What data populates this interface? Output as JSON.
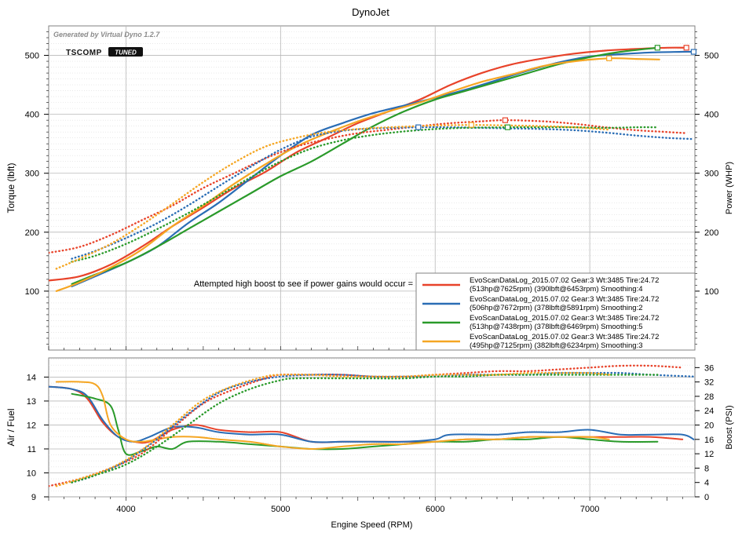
{
  "title": "DynoJet",
  "watermark": "Generated by Virtual Dyno 1.2.7",
  "logo": {
    "left": "TSCOMP",
    "right": "TUNED"
  },
  "annotation": "Attempted high boost to see if power gains would occur =",
  "colors": {
    "red": "#e8432a",
    "blue": "#2a6db5",
    "green": "#2a9a2a",
    "orange": "#f5a623",
    "grid": "#b8b8b8",
    "frame": "#808080"
  },
  "legend": [
    {
      "color": "#e8432a",
      "line1": "EvoScanDataLog_2015.07.02 Gear:3 Wt:3485 Tire:24.72",
      "line2": "(513hp@7625rpm) (390lbft@6453rpm) Smoothing:4"
    },
    {
      "color": "#2a6db5",
      "line1": "EvoScanDataLog_2015.07.02 Gear:3 Wt:3485 Tire:24.72",
      "line2": "(506hp@7672rpm) (378lbft@5891rpm) Smoothing:2"
    },
    {
      "color": "#2a9a2a",
      "line1": "EvoScanDataLog_2015.07.02 Gear:3 Wt:3485 Tire:24.72",
      "line2": "(513hp@7438rpm) (378lbft@6469rpm) Smoothing:5"
    },
    {
      "color": "#f5a623",
      "line1": "EvoScanDataLog_2015.07.02 Gear:3 Wt:3485 Tire:24.72",
      "line2": "(495hp@7125rpm) (382lbft@6234rpm) Smoothing:3"
    }
  ],
  "chart_data": [
    {
      "type": "line",
      "xlabel": "",
      "ylabel": "Torque (lbft)",
      "y2label": "Power (WHP)",
      "xlim": [
        3500,
        7680
      ],
      "ylim": [
        0,
        550
      ],
      "y2lim": [
        0,
        550
      ],
      "xticks": [
        4000,
        5000,
        6000,
        7000
      ],
      "yticks": [
        100,
        200,
        300,
        400,
        500
      ],
      "y2ticks": [
        100,
        200,
        300,
        400,
        500
      ],
      "grid": true,
      "legend_position": "bottom-right",
      "series": [
        {
          "color": "#e8432a",
          "style": "solid",
          "axis": "power",
          "x": [
            3500,
            3700,
            3900,
            4100,
            4300,
            4500,
            4700,
            4900,
            5100,
            5300,
            5500,
            5700,
            5900,
            6100,
            6300,
            6500,
            6700,
            6900,
            7100,
            7300,
            7500,
            7625
          ],
          "y": [
            118,
            125,
            145,
            175,
            210,
            242,
            275,
            302,
            335,
            360,
            385,
            405,
            425,
            450,
            470,
            485,
            495,
            503,
            508,
            511,
            513,
            513
          ]
        },
        {
          "color": "#2a6db5",
          "style": "solid",
          "axis": "power",
          "x": [
            3650,
            3800,
            4000,
            4200,
            4400,
            4600,
            4800,
            5000,
            5200,
            5400,
            5600,
            5800,
            6000,
            6200,
            6400,
            6600,
            6800,
            7000,
            7200,
            7400,
            7600,
            7672
          ],
          "y": [
            108,
            125,
            148,
            175,
            215,
            250,
            290,
            330,
            365,
            385,
            402,
            415,
            428,
            442,
            458,
            474,
            488,
            498,
            502,
            505,
            506,
            506
          ]
        },
        {
          "color": "#2a9a2a",
          "style": "solid",
          "axis": "power",
          "x": [
            3650,
            3800,
            4000,
            4200,
            4400,
            4600,
            4800,
            5000,
            5200,
            5400,
            5600,
            5800,
            6000,
            6200,
            6400,
            6600,
            6800,
            7000,
            7200,
            7438
          ],
          "y": [
            112,
            128,
            148,
            175,
            205,
            235,
            265,
            295,
            320,
            350,
            380,
            405,
            425,
            440,
            455,
            470,
            485,
            497,
            506,
            513
          ]
        },
        {
          "color": "#f5a623",
          "style": "solid",
          "axis": "power",
          "x": [
            3550,
            3700,
            3900,
            4100,
            4300,
            4500,
            4700,
            4900,
            5100,
            5300,
            5500,
            5700,
            5900,
            6100,
            6300,
            6500,
            6700,
            6900,
            7125,
            7300,
            7450
          ],
          "y": [
            100,
            115,
            140,
            170,
            210,
            245,
            282,
            315,
            345,
            368,
            388,
            405,
            420,
            438,
            455,
            468,
            482,
            490,
            495,
            494,
            493
          ]
        },
        {
          "color": "#e8432a",
          "style": "dotted",
          "axis": "torque",
          "x": [
            3500,
            3700,
            3900,
            4100,
            4300,
            4500,
            4700,
            4900,
            5100,
            5300,
            5500,
            5700,
            5900,
            6100,
            6300,
            6453,
            6700,
            6900,
            7100,
            7300,
            7500,
            7625
          ],
          "y": [
            165,
            175,
            195,
            220,
            245,
            275,
            300,
            325,
            345,
            358,
            368,
            374,
            380,
            385,
            388,
            390,
            388,
            384,
            378,
            373,
            370,
            368
          ]
        },
        {
          "color": "#2a6db5",
          "style": "dotted",
          "axis": "torque",
          "x": [
            3650,
            3800,
            4000,
            4200,
            4400,
            4600,
            4800,
            5000,
            5200,
            5400,
            5600,
            5891,
            6100,
            6300,
            6500,
            6700,
            6900,
            7100,
            7300,
            7500,
            7672
          ],
          "y": [
            155,
            168,
            190,
            215,
            245,
            278,
            310,
            340,
            362,
            372,
            376,
            378,
            378,
            377,
            376,
            375,
            373,
            369,
            364,
            360,
            358
          ]
        },
        {
          "color": "#2a9a2a",
          "style": "dotted",
          "axis": "torque",
          "x": [
            3650,
            3800,
            4000,
            4200,
            4400,
            4600,
            4800,
            5000,
            5200,
            5400,
            5600,
            5800,
            6000,
            6200,
            6469,
            6700,
            6900,
            7100,
            7300,
            7438
          ],
          "y": [
            150,
            160,
            180,
            205,
            232,
            262,
            292,
            320,
            342,
            356,
            365,
            371,
            375,
            377,
            378,
            378,
            378,
            377,
            378,
            378
          ]
        },
        {
          "color": "#f5a623",
          "style": "dotted",
          "axis": "torque",
          "x": [
            3550,
            3700,
            3900,
            4100,
            4300,
            4500,
            4700,
            4900,
            5100,
            5300,
            5500,
            5700,
            5900,
            6000,
            6234,
            6500,
            6700,
            6900,
            7125
          ],
          "y": [
            138,
            155,
            180,
            212,
            248,
            285,
            318,
            345,
            360,
            370,
            375,
            378,
            380,
            381,
            382,
            381,
            380,
            378,
            374
          ]
        }
      ],
      "markers": [
        {
          "color": "#e8432a",
          "x": 7625,
          "y": 513
        },
        {
          "color": "#e8432a",
          "x": 6453,
          "y": 390
        },
        {
          "color": "#2a6db5",
          "x": 7672,
          "y": 506
        },
        {
          "color": "#2a6db5",
          "x": 5891,
          "y": 378
        },
        {
          "color": "#2a9a2a",
          "x": 7438,
          "y": 513
        },
        {
          "color": "#2a9a2a",
          "x": 6469,
          "y": 378
        },
        {
          "color": "#f5a623",
          "x": 7125,
          "y": 495
        },
        {
          "color": "#f5a623",
          "x": 6234,
          "y": 382
        }
      ]
    },
    {
      "type": "line",
      "xlabel": "Engine Speed (RPM)",
      "ylabel": "Air / Fuel",
      "y2label": "Boost (PSI)",
      "xlim": [
        3500,
        7680
      ],
      "ylim": [
        9,
        14.8
      ],
      "y2lim": [
        0,
        38.7
      ],
      "xticks": [
        4000,
        5000,
        6000,
        7000
      ],
      "yticks": [
        9,
        10,
        11,
        12,
        13,
        14
      ],
      "y2ticks": [
        0,
        4,
        8,
        12,
        16,
        20,
        24,
        28,
        32,
        36
      ],
      "grid": true,
      "series": [
        {
          "color": "#e8432a",
          "style": "solid",
          "axis": "afr",
          "x": [
            3500,
            3650,
            3750,
            3850,
            3950,
            4050,
            4150,
            4300,
            4450,
            4600,
            4800,
            5000,
            5200,
            5400,
            5600,
            5800,
            6000,
            6200,
            6400,
            6600,
            6800,
            7000,
            7200,
            7400,
            7600
          ],
          "y": [
            13.6,
            13.5,
            13.1,
            12.1,
            11.5,
            11.3,
            11.3,
            11.8,
            12.0,
            11.8,
            11.7,
            11.7,
            11.3,
            11.3,
            11.3,
            11.3,
            11.3,
            11.4,
            11.4,
            11.5,
            11.5,
            11.5,
            11.5,
            11.5,
            11.4
          ]
        },
        {
          "color": "#2a6db5",
          "style": "solid",
          "axis": "afr",
          "x": [
            3500,
            3650,
            3750,
            3850,
            3950,
            4050,
            4150,
            4300,
            4450,
            4600,
            4800,
            5000,
            5200,
            5400,
            5600,
            5800,
            6000,
            6100,
            6400,
            6600,
            6800,
            7000,
            7200,
            7400,
            7600,
            7672
          ],
          "y": [
            13.6,
            13.5,
            13.2,
            12.2,
            11.5,
            11.3,
            11.5,
            11.9,
            11.9,
            11.7,
            11.6,
            11.6,
            11.3,
            11.3,
            11.3,
            11.3,
            11.4,
            11.6,
            11.6,
            11.7,
            11.7,
            11.8,
            11.6,
            11.6,
            11.6,
            11.4
          ]
        },
        {
          "color": "#2a9a2a",
          "style": "solid",
          "axis": "afr",
          "x": [
            3650,
            3800,
            3900,
            3950,
            4000,
            4100,
            4200,
            4300,
            4400,
            4600,
            4800,
            5000,
            5200,
            5400,
            5600,
            5800,
            6000,
            6200,
            6400,
            6600,
            6800,
            7000,
            7200,
            7438
          ],
          "y": [
            13.3,
            13.1,
            12.8,
            11.8,
            10.8,
            10.9,
            11.1,
            11.0,
            11.3,
            11.3,
            11.2,
            11.1,
            11.0,
            11.0,
            11.1,
            11.2,
            11.3,
            11.3,
            11.4,
            11.4,
            11.5,
            11.4,
            11.3,
            11.3
          ]
        },
        {
          "color": "#f5a623",
          "style": "solid",
          "axis": "afr",
          "x": [
            3550,
            3700,
            3800,
            3850,
            3900,
            4000,
            4100,
            4200,
            4300,
            4450,
            4600,
            4800,
            5000,
            5200,
            5400,
            5600,
            5800,
            6000,
            6200,
            6400,
            6600,
            6800,
            7000,
            7125
          ],
          "y": [
            13.8,
            13.8,
            13.7,
            13.2,
            12.0,
            11.4,
            11.3,
            11.4,
            11.5,
            11.5,
            11.4,
            11.3,
            11.1,
            11.0,
            11.1,
            11.2,
            11.2,
            11.3,
            11.4,
            11.4,
            11.5,
            11.5,
            11.5,
            11.4
          ]
        },
        {
          "color": "#e8432a",
          "style": "dotted",
          "axis": "boost",
          "x": [
            3500,
            3700,
            3900,
            4100,
            4300,
            4500,
            4700,
            4900,
            5000,
            5200,
            5400,
            5600,
            5800,
            6000,
            6200,
            6400,
            6600,
            6800,
            7000,
            7200,
            7400,
            7600
          ],
          "y": [
            3,
            5,
            8,
            12,
            19,
            26,
            30,
            33,
            34,
            34,
            34,
            33.5,
            33.5,
            34,
            34.5,
            35,
            35,
            35.5,
            36,
            36.5,
            36.5,
            36
          ]
        },
        {
          "color": "#2a6db5",
          "style": "dotted",
          "axis": "boost",
          "x": [
            3650,
            3800,
            4000,
            4200,
            4400,
            4600,
            4800,
            5000,
            5200,
            5400,
            5600,
            5800,
            6000,
            6200,
            6400,
            6600,
            6800,
            7000,
            7200,
            7400,
            7680
          ],
          "y": [
            4,
            6,
            10,
            16,
            23,
            29,
            32,
            33.5,
            34,
            34,
            33.5,
            33.5,
            33.5,
            34,
            34,
            34,
            34.5,
            34.5,
            34.5,
            34,
            33.5
          ]
        },
        {
          "color": "#2a9a2a",
          "style": "dotted",
          "axis": "boost",
          "x": [
            3650,
            3800,
            4000,
            4200,
            4400,
            4600,
            4800,
            5000,
            5100,
            5400,
            5600,
            5800,
            6000,
            6200,
            6400,
            6600,
            6800,
            7000,
            7200,
            7438
          ],
          "y": [
            4,
            6,
            9,
            14,
            20,
            26,
            30,
            32.5,
            33,
            33,
            33,
            33,
            33.5,
            33.5,
            34,
            34,
            34,
            34,
            34,
            34
          ]
        },
        {
          "color": "#f5a623",
          "style": "dotted",
          "axis": "boost",
          "x": [
            3550,
            3700,
            3900,
            4100,
            4300,
            4500,
            4700,
            4900,
            5000,
            5200,
            5400,
            5600,
            5800,
            6000,
            6200,
            6400,
            6600,
            6800,
            7000,
            7125
          ],
          "y": [
            3,
            5,
            8,
            13,
            20,
            27,
            31,
            33.5,
            34,
            34,
            33.5,
            33.5,
            33.5,
            34,
            34,
            34,
            34.5,
            34.5,
            34.5,
            34
          ]
        }
      ]
    }
  ]
}
